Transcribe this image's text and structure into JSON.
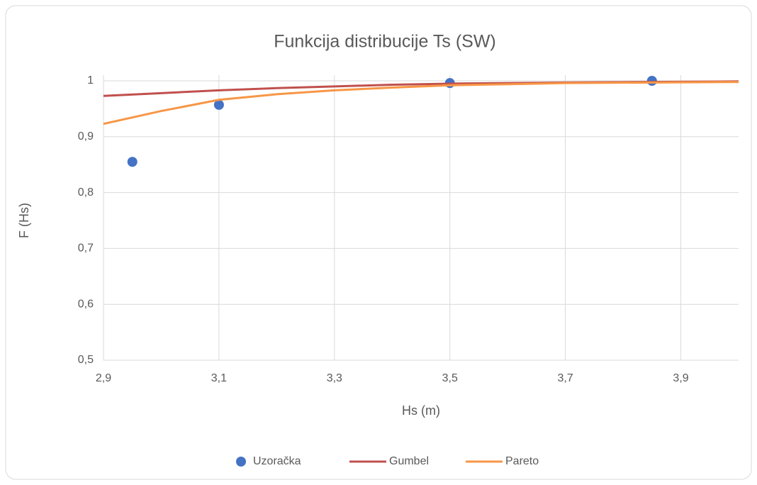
{
  "chart_data": {
    "type": "scatter",
    "title": "Funkcija distribucije Ts (SW)",
    "xlabel": "Hs (m)",
    "ylabel": "F (Hs)",
    "xlim": [
      2.9,
      4.0
    ],
    "xticks": [
      {
        "value": 2.9,
        "label": "2,9"
      },
      {
        "value": 3.1,
        "label": "3,1"
      },
      {
        "value": 3.3,
        "label": "3,3"
      },
      {
        "value": 3.5,
        "label": "3,5"
      },
      {
        "value": 3.7,
        "label": "3,7"
      },
      {
        "value": 3.9,
        "label": "3,9"
      }
    ],
    "ylim": [
      0.5,
      1
    ],
    "yticks": [
      {
        "value": 0.5,
        "label": "0,5"
      },
      {
        "value": 0.6,
        "label": "0,6"
      },
      {
        "value": 0.7,
        "label": "0,7"
      },
      {
        "value": 0.8,
        "label": "0,8"
      },
      {
        "value": 0.9,
        "label": "0,9"
      },
      1
    ],
    "grid": true,
    "legend": "bottom",
    "series": [
      {
        "name": "Uzoračka",
        "color": "#4472c4",
        "mode": "markers",
        "x": [
          2.95,
          3.1,
          3.5,
          3.85
        ],
        "values": [
          0.855,
          0.957,
          0.996,
          1.0
        ]
      },
      {
        "name": "Gumbel",
        "color": "#c0504d",
        "mode": "lines",
        "x": [
          2.9,
          3.0,
          3.1,
          3.2,
          3.3,
          3.4,
          3.5,
          3.7,
          4.0
        ],
        "values": [
          0.973,
          0.978,
          0.983,
          0.987,
          0.99,
          0.993,
          0.995,
          0.997,
          0.999
        ]
      },
      {
        "name": "Pareto",
        "color": "#f79646",
        "mode": "lines",
        "x": [
          2.9,
          3.0,
          3.1,
          3.2,
          3.3,
          3.4,
          3.5,
          3.7,
          4.0
        ],
        "values": [
          0.923,
          0.946,
          0.966,
          0.976,
          0.983,
          0.988,
          0.992,
          0.996,
          0.998
        ]
      }
    ]
  }
}
